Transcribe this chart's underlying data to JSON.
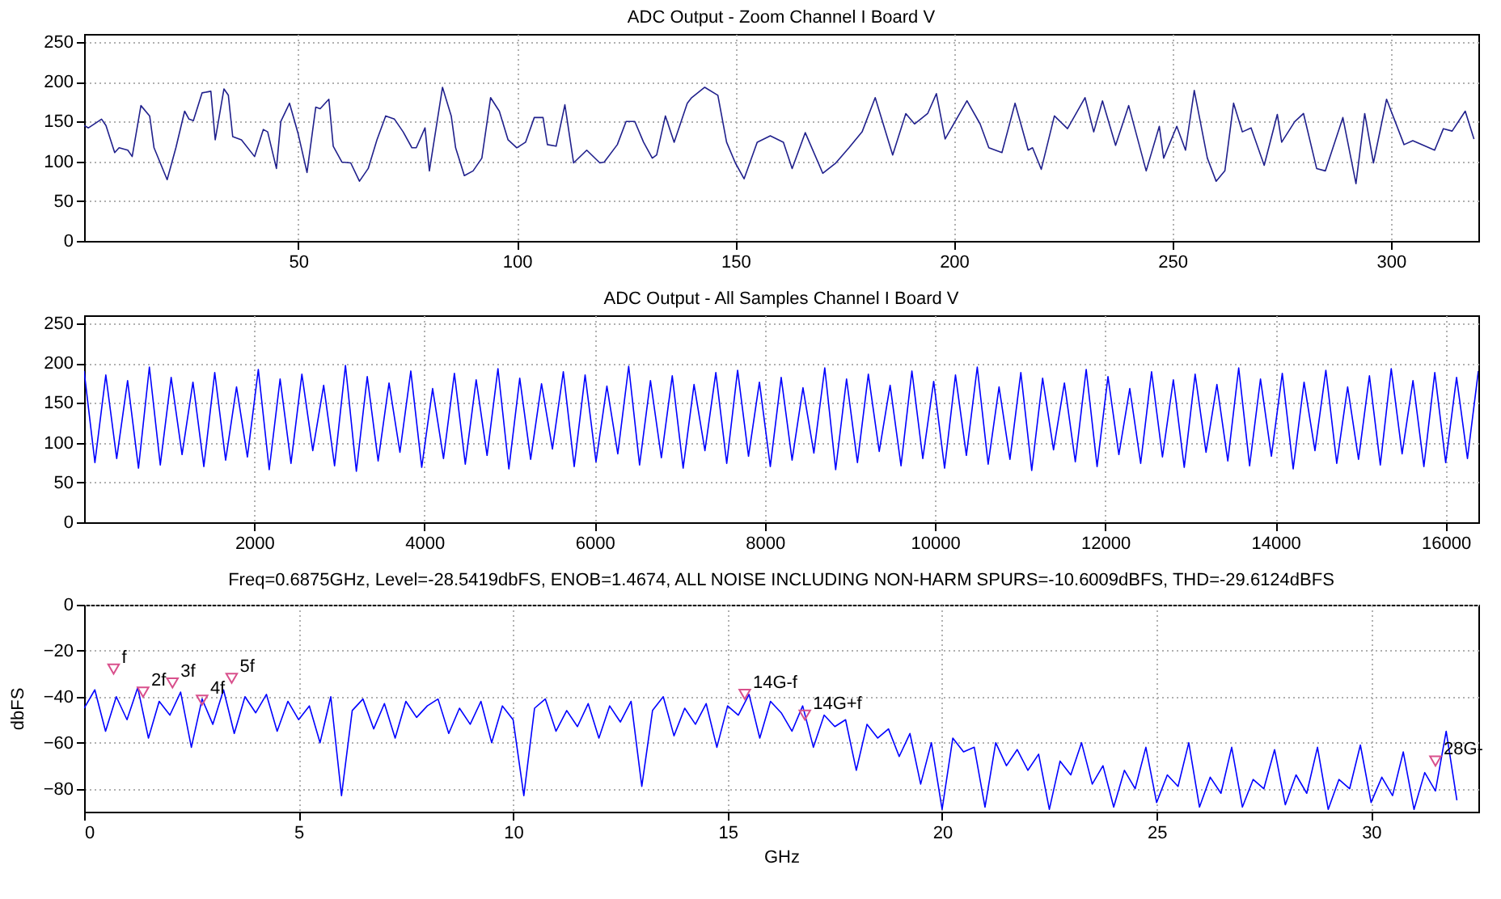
{
  "chart_data": [
    {
      "type": "line",
      "title": "ADC Output - Zoom Channel I Board V",
      "grid": true,
      "xlim": [
        1,
        320
      ],
      "xticks": [
        50,
        100,
        150,
        200,
        250,
        300
      ],
      "ylim": [
        0,
        260
      ],
      "yticks": [
        0,
        50,
        100,
        150,
        200,
        250
      ],
      "x": [
        1,
        2,
        5,
        6,
        8,
        9,
        11,
        12,
        14,
        16,
        17,
        20,
        22,
        24,
        25,
        26,
        28,
        30,
        31,
        33,
        34,
        35,
        37,
        40,
        42,
        43,
        45,
        46,
        48,
        50,
        52,
        54,
        55,
        57,
        58,
        60,
        62,
        64,
        66,
        68,
        70,
        72,
        74,
        76,
        77,
        79,
        80,
        83,
        85,
        86,
        88,
        90,
        92,
        94,
        96,
        98,
        100,
        102,
        104,
        106,
        107,
        109,
        111,
        113,
        116,
        119,
        120,
        123,
        125,
        127,
        129,
        131,
        132,
        134,
        136,
        139,
        140,
        143,
        146,
        148,
        150,
        152,
        155,
        158,
        161,
        163,
        166,
        170,
        173,
        176,
        179,
        182,
        186,
        189,
        191,
        194,
        196,
        198,
        203,
        206,
        208,
        211,
        214,
        217,
        218,
        220,
        223,
        226,
        230,
        232,
        234,
        237,
        240,
        244,
        247,
        248,
        251,
        253,
        255,
        258,
        260,
        262,
        264,
        266,
        268,
        271,
        274,
        275,
        278,
        280,
        283,
        285,
        289,
        292,
        294,
        296,
        299,
        303,
        305,
        310,
        312,
        314,
        317,
        319
      ],
      "series": [
        {
          "color": "#20208c",
          "values": [
            145,
            142,
            153,
            145,
            111,
            117,
            114,
            106,
            170,
            157,
            117,
            77,
            117,
            163,
            153,
            151,
            186,
            188,
            127,
            191,
            183,
            131,
            127,
            106,
            140,
            137,
            91,
            150,
            173,
            134,
            86,
            168,
            166,
            178,
            119,
            99,
            98,
            75,
            91,
            127,
            157,
            153,
            137,
            117,
            117,
            142,
            88,
            193,
            157,
            117,
            82,
            88,
            104,
            180,
            163,
            127,
            117,
            124,
            155,
            155,
            121,
            119,
            171,
            98,
            114,
            98,
            99,
            121,
            150,
            150,
            124,
            104,
            108,
            157,
            124,
            173,
            180,
            193,
            183,
            124,
            98,
            78,
            124,
            132,
            124,
            91,
            136,
            85,
            98,
            117,
            137,
            180,
            108,
            160,
            147,
            160,
            185,
            128,
            176,
            147,
            117,
            111,
            173,
            114,
            117,
            90,
            157,
            141,
            180,
            137,
            176,
            120,
            170,
            88,
            144,
            104,
            144,
            114,
            189,
            104,
            75,
            88,
            173,
            137,
            142,
            95,
            159,
            124,
            150,
            160,
            91,
            88,
            155,
            72,
            160,
            98,
            178,
            121,
            126,
            114,
            141,
            138,
            163,
            128
          ]
        }
      ]
    },
    {
      "type": "line",
      "title": "ADC Output - All Samples Channel I Board V",
      "grid": true,
      "xlim": [
        1,
        16384
      ],
      "xticks": [
        2000,
        4000,
        6000,
        8000,
        10000,
        12000,
        14000,
        16000
      ],
      "ylim": [
        0,
        260
      ],
      "yticks": [
        0,
        50,
        100,
        150,
        200,
        250
      ],
      "x": [
        1,
        128,
        256,
        384,
        512,
        640,
        768,
        896,
        1024,
        1152,
        1280,
        1408,
        1536,
        1664,
        1792,
        1920,
        2048,
        2176,
        2304,
        2432,
        2560,
        2688,
        2816,
        2944,
        3072,
        3200,
        3328,
        3456,
        3584,
        3712,
        3840,
        3968,
        4096,
        4224,
        4352,
        4480,
        4608,
        4736,
        4864,
        4992,
        5120,
        5248,
        5376,
        5504,
        5632,
        5760,
        5888,
        6016,
        6144,
        6272,
        6400,
        6528,
        6656,
        6784,
        6912,
        7040,
        7168,
        7296,
        7424,
        7552,
        7680,
        7808,
        7936,
        8064,
        8192,
        8320,
        8448,
        8576,
        8704,
        8832,
        8960,
        9088,
        9216,
        9344,
        9472,
        9600,
        9728,
        9856,
        9984,
        10112,
        10240,
        10368,
        10496,
        10624,
        10752,
        10880,
        11008,
        11136,
        11264,
        11392,
        11520,
        11648,
        11776,
        11904,
        12032,
        12160,
        12288,
        12416,
        12544,
        12672,
        12800,
        12928,
        13056,
        13184,
        13312,
        13440,
        13568,
        13696,
        13824,
        13952,
        14080,
        14208,
        14336,
        14464,
        14592,
        14720,
        14848,
        14976,
        15104,
        15232,
        15360,
        15488,
        15616,
        15744,
        15872,
        16000,
        16128,
        16256,
        16384
      ],
      "series": [
        {
          "color": "#0000ff",
          "values": [
            190,
            75,
            185,
            80,
            178,
            68,
            195,
            72,
            182,
            85,
            176,
            70,
            188,
            78,
            170,
            82,
            192,
            66,
            180,
            74,
            186,
            90,
            172,
            71,
            197,
            64,
            183,
            77,
            175,
            88,
            190,
            69,
            168,
            80,
            187,
            73,
            179,
            84,
            193,
            67,
            181,
            79,
            174,
            92,
            189,
            70,
            185,
            76,
            171,
            86,
            196,
            72,
            178,
            81,
            184,
            68,
            173,
            90,
            188,
            74,
            191,
            83,
            176,
            70,
            182,
            78,
            169,
            87,
            194,
            66,
            180,
            75,
            186,
            89,
            172,
            71,
            190,
            80,
            177,
            68,
            185,
            84,
            195,
            73,
            170,
            79,
            188,
            65,
            181,
            91,
            175,
            76,
            192,
            70,
            183,
            85,
            168,
            74,
            189,
            82,
            179,
            69,
            186,
            88,
            173,
            77,
            194,
            71,
            180,
            83,
            187,
            67,
            176,
            90,
            191,
            74,
            170,
            79,
            184,
            72,
            193,
            86,
            178,
            70,
            188,
            75,
            182,
            80,
            190
          ]
        }
      ]
    },
    {
      "type": "line",
      "title": "Freq=0.6875GHz, Level=-28.5419dbFS, ENOB=1.4674, ALL NOISE INCLUDING NON-HARM SPURS=-10.6009dBFS, THD=-29.6124dBFS",
      "xlabel": "GHz",
      "ylabel": "dbFS",
      "grid": true,
      "xlim": [
        0,
        32.5
      ],
      "xticks": [
        0,
        5,
        10,
        15,
        20,
        25,
        30
      ],
      "ylim": [
        -90,
        0
      ],
      "yticks": [
        -80,
        -60,
        -40,
        -20,
        0
      ],
      "x": [
        0,
        0.25,
        0.5,
        0.75,
        1,
        1.25,
        1.5,
        1.75,
        2,
        2.25,
        2.5,
        2.75,
        3,
        3.25,
        3.5,
        3.75,
        4,
        4.25,
        4.5,
        4.75,
        5,
        5.25,
        5.5,
        5.75,
        6,
        6.25,
        6.5,
        6.75,
        7,
        7.25,
        7.5,
        7.75,
        8,
        8.25,
        8.5,
        8.75,
        9,
        9.25,
        9.5,
        9.75,
        10,
        10.25,
        10.5,
        10.75,
        11,
        11.25,
        11.5,
        11.75,
        12,
        12.25,
        12.5,
        12.75,
        13,
        13.25,
        13.5,
        13.75,
        14,
        14.25,
        14.5,
        14.75,
        15,
        15.25,
        15.5,
        15.75,
        16,
        16.25,
        16.5,
        16.75,
        17,
        17.25,
        17.5,
        17.75,
        18,
        18.25,
        18.5,
        18.75,
        19,
        19.25,
        19.5,
        19.75,
        20,
        20.25,
        20.5,
        20.75,
        21,
        21.25,
        21.5,
        21.75,
        22,
        22.25,
        22.5,
        22.75,
        23,
        23.25,
        23.5,
        23.75,
        24,
        24.25,
        24.5,
        24.75,
        25,
        25.25,
        25.5,
        25.75,
        26,
        26.25,
        26.5,
        26.75,
        27,
        27.25,
        27.5,
        27.75,
        28,
        28.25,
        28.5,
        28.75,
        29,
        29.25,
        29.5,
        29.75,
        30,
        30.25,
        30.5,
        30.75,
        31,
        31.25,
        31.5,
        31.75,
        32
      ],
      "series": [
        {
          "color": "#0000ff",
          "values": [
            -45,
            -37,
            -55,
            -40,
            -50,
            -36,
            -58,
            -42,
            -48,
            -38,
            -62,
            -41,
            -52,
            -37,
            -56,
            -40,
            -47,
            -39,
            -55,
            -42,
            -50,
            -44,
            -60,
            -40,
            -83,
            -46,
            -41,
            -54,
            -43,
            -58,
            -42,
            -49,
            -44,
            -41,
            -56,
            -45,
            -52,
            -42,
            -60,
            -44,
            -50,
            -83,
            -45,
            -41,
            -55,
            -46,
            -53,
            -43,
            -58,
            -44,
            -51,
            -42,
            -79,
            -46,
            -40,
            -57,
            -45,
            -52,
            -43,
            -62,
            -44,
            -48,
            -39,
            -58,
            -42,
            -47,
            -55,
            -44,
            -62,
            -48,
            -53,
            -50,
            -72,
            -52,
            -58,
            -54,
            -66,
            -56,
            -78,
            -60,
            -89,
            -58,
            -64,
            -62,
            -88,
            -60,
            -70,
            -63,
            -72,
            -65,
            -89,
            -68,
            -74,
            -60,
            -78,
            -70,
            -88,
            -72,
            -80,
            -62,
            -86,
            -74,
            -79,
            -60,
            -88,
            -75,
            -82,
            -62,
            -88,
            -76,
            -80,
            -63,
            -87,
            -74,
            -82,
            -62,
            -89,
            -76,
            -80,
            -61,
            -86,
            -75,
            -83,
            -64,
            -89,
            -73,
            -81,
            -55,
            -85
          ]
        },
        {
          "type": "scatter",
          "marker": "triangle",
          "color": "#d9508c",
          "x": [
            0.6875,
            1.375,
            2.06,
            2.75,
            3.44,
            15.4,
            16.8,
            31.5
          ],
          "values": [
            -28,
            -38,
            -34,
            -41.5,
            -32,
            -39,
            -48,
            -68
          ]
        }
      ],
      "annotations": [
        {
          "text": "f",
          "x": 0.6875,
          "y": -28
        },
        {
          "text": "2f",
          "x": 1.375,
          "y": -38
        },
        {
          "text": "3f",
          "x": 2.06,
          "y": -34
        },
        {
          "text": "4f",
          "x": 2.75,
          "y": -41.5
        },
        {
          "text": "5f",
          "x": 3.44,
          "y": -32
        },
        {
          "text": "14G-f",
          "x": 15.4,
          "y": -39
        },
        {
          "text": "14G+f",
          "x": 16.8,
          "y": -48
        },
        {
          "text": "28G-",
          "x": 31.5,
          "y": -68
        }
      ]
    }
  ]
}
